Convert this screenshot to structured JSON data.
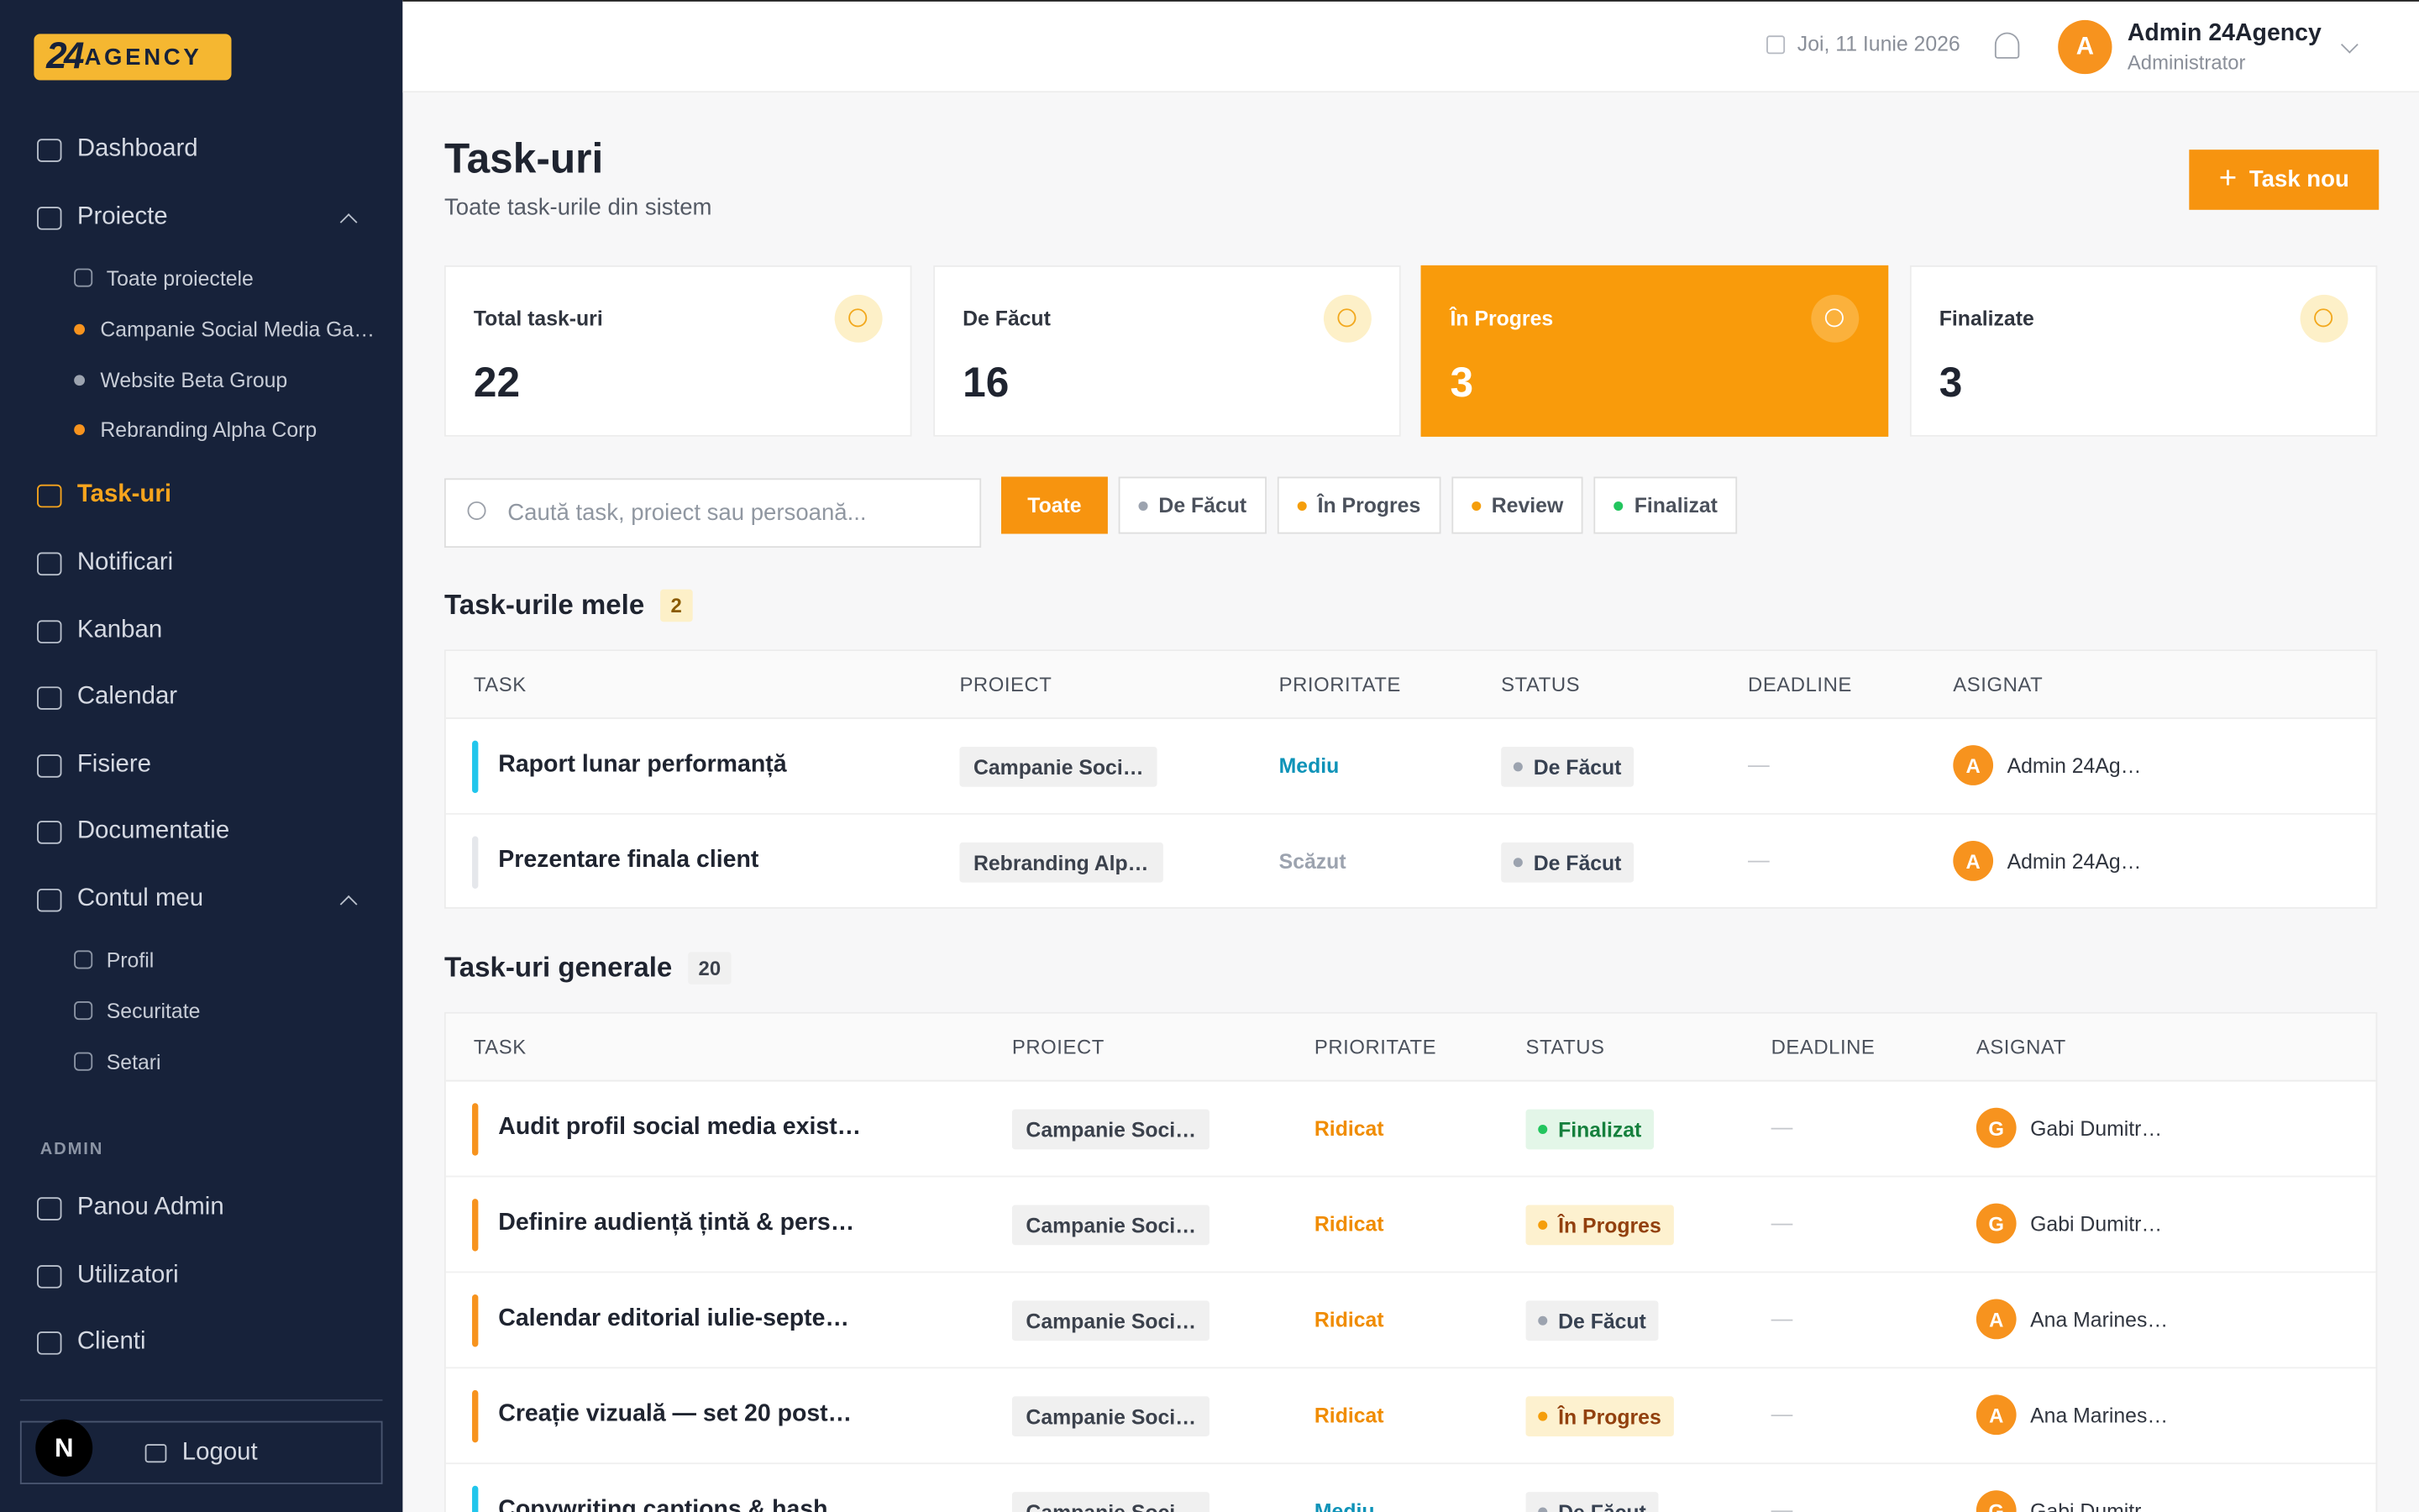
{
  "brand": {
    "number": "24",
    "name": "AGENCY"
  },
  "sidebar": {
    "top": [
      "Dashboard",
      "Proiecte"
    ],
    "projects": [
      "Toate proiectele",
      "Campanie Social Media Ga…",
      "Website Beta Group",
      "Rebranding Alpha Corp"
    ],
    "middle": [
      "Task-uri",
      "Notificari",
      "Kanban",
      "Calendar",
      "Fisiere",
      "Documentatie",
      "Contul meu"
    ],
    "account": [
      "Profil",
      "Securitate",
      "Setari"
    ],
    "admin_heading": "ADMIN",
    "admin": [
      "Panou Admin",
      "Utilizatori",
      "Clienti"
    ],
    "badge": "N",
    "logout": "Logout"
  },
  "header": {
    "date": "Joi, 11 Iunie 2026",
    "avatar": "A",
    "user": "Admin 24Agency",
    "role": "Administrator"
  },
  "page": {
    "title": "Task-uri",
    "subtitle": "Toate task-urile din sistem",
    "new_button": "Task nou"
  },
  "stats": [
    {
      "label": "Total task-uri",
      "value": "22"
    },
    {
      "label": "De Făcut",
      "value": "16"
    },
    {
      "label": "În Progres",
      "value": "3"
    },
    {
      "label": "Finalizate",
      "value": "3"
    }
  ],
  "search_placeholder": "Caută task, proiect sau persoană...",
  "filters": [
    {
      "label": "Toate"
    },
    {
      "label": "De Făcut",
      "color": "#9ca3af"
    },
    {
      "label": "În Progres",
      "color": "#f59e0b"
    },
    {
      "label": "Review",
      "color": "#f59e0b"
    },
    {
      "label": "Finalizat",
      "color": "#22c55e"
    }
  ],
  "my_tasks": {
    "title": "Task-urile mele",
    "count": "2",
    "columns": [
      "TASK",
      "PROIECT",
      "PRIORITATE",
      "STATUS",
      "DEADLINE",
      "ASIGNAT"
    ],
    "rows": [
      {
        "task": "Raport lunar performanță",
        "project": "Campanie Soci…",
        "priority": {
          "text": "Mediu",
          "color": "#0e93b8",
          "bar": "#22c6ec"
        },
        "status": {
          "text": "De Făcut",
          "dot": "#9ca3af",
          "bg": "#f0f0f0",
          "color": "#374151"
        },
        "deadline": "—",
        "initial": "A",
        "assignee": "Admin 24Ag…"
      },
      {
        "task": "Prezentare finala client",
        "project": "Rebranding Alp…",
        "priority": {
          "text": "Scăzut",
          "color": "#9ca3af",
          "bar": "#e5e7eb"
        },
        "status": {
          "text": "De Făcut",
          "dot": "#9ca3af",
          "bg": "#f0f0f0",
          "color": "#374151"
        },
        "deadline": "—",
        "initial": "A",
        "assignee": "Admin 24Ag…"
      }
    ]
  },
  "general_tasks": {
    "title": "Task-uri generale",
    "count": "20",
    "columns": [
      "TASK",
      "PROIECT",
      "PRIORITATE",
      "STATUS",
      "DEADLINE",
      "ASIGNAT"
    ],
    "rows": [
      {
        "task": "Audit profil social media exist…",
        "project": "Campanie Soci…",
        "priority": {
          "text": "Ridicat",
          "color": "#f08c00",
          "bar": "#f7931e"
        },
        "status": {
          "text": "Finalizat",
          "dot": "#22c55e",
          "bg": "#e3f6e8",
          "color": "#15803d"
        },
        "deadline": "—",
        "initial": "G",
        "assignee": "Gabi Dumitr…"
      },
      {
        "task": "Definire audiență țintă & pers…",
        "project": "Campanie Soci…",
        "priority": {
          "text": "Ridicat",
          "color": "#f08c00",
          "bar": "#f7931e"
        },
        "status": {
          "text": "În Progres",
          "dot": "#f59e0b",
          "bg": "#fdf1cf",
          "color": "#92400e"
        },
        "deadline": "—",
        "initial": "G",
        "assignee": "Gabi Dumitr…"
      },
      {
        "task": "Calendar editorial iulie-septe…",
        "project": "Campanie Soci…",
        "priority": {
          "text": "Ridicat",
          "color": "#f08c00",
          "bar": "#f7931e"
        },
        "status": {
          "text": "De Făcut",
          "dot": "#9ca3af",
          "bg": "#f0f0f0",
          "color": "#374151"
        },
        "deadline": "—",
        "initial": "A",
        "assignee": "Ana Marines…"
      },
      {
        "task": "Creație vizuală — set 20 post…",
        "project": "Campanie Soci…",
        "priority": {
          "text": "Ridicat",
          "color": "#f08c00",
          "bar": "#f7931e"
        },
        "status": {
          "text": "În Progres",
          "dot": "#f59e0b",
          "bg": "#fdf1cf",
          "color": "#92400e"
        },
        "deadline": "—",
        "initial": "A",
        "assignee": "Ana Marines…"
      },
      {
        "task": "Copywriting captions & hash…",
        "project": "Campanie Soci…",
        "priority": {
          "text": "Mediu",
          "color": "#0e93b8",
          "bar": "#22c6ec"
        },
        "status": {
          "text": "De Făcut",
          "dot": "#9ca3af",
          "bg": "#f0f0f0",
          "color": "#374151"
        },
        "deadline": "—",
        "initial": "G",
        "assignee": "Gabi Dumitr…"
      }
    ]
  }
}
